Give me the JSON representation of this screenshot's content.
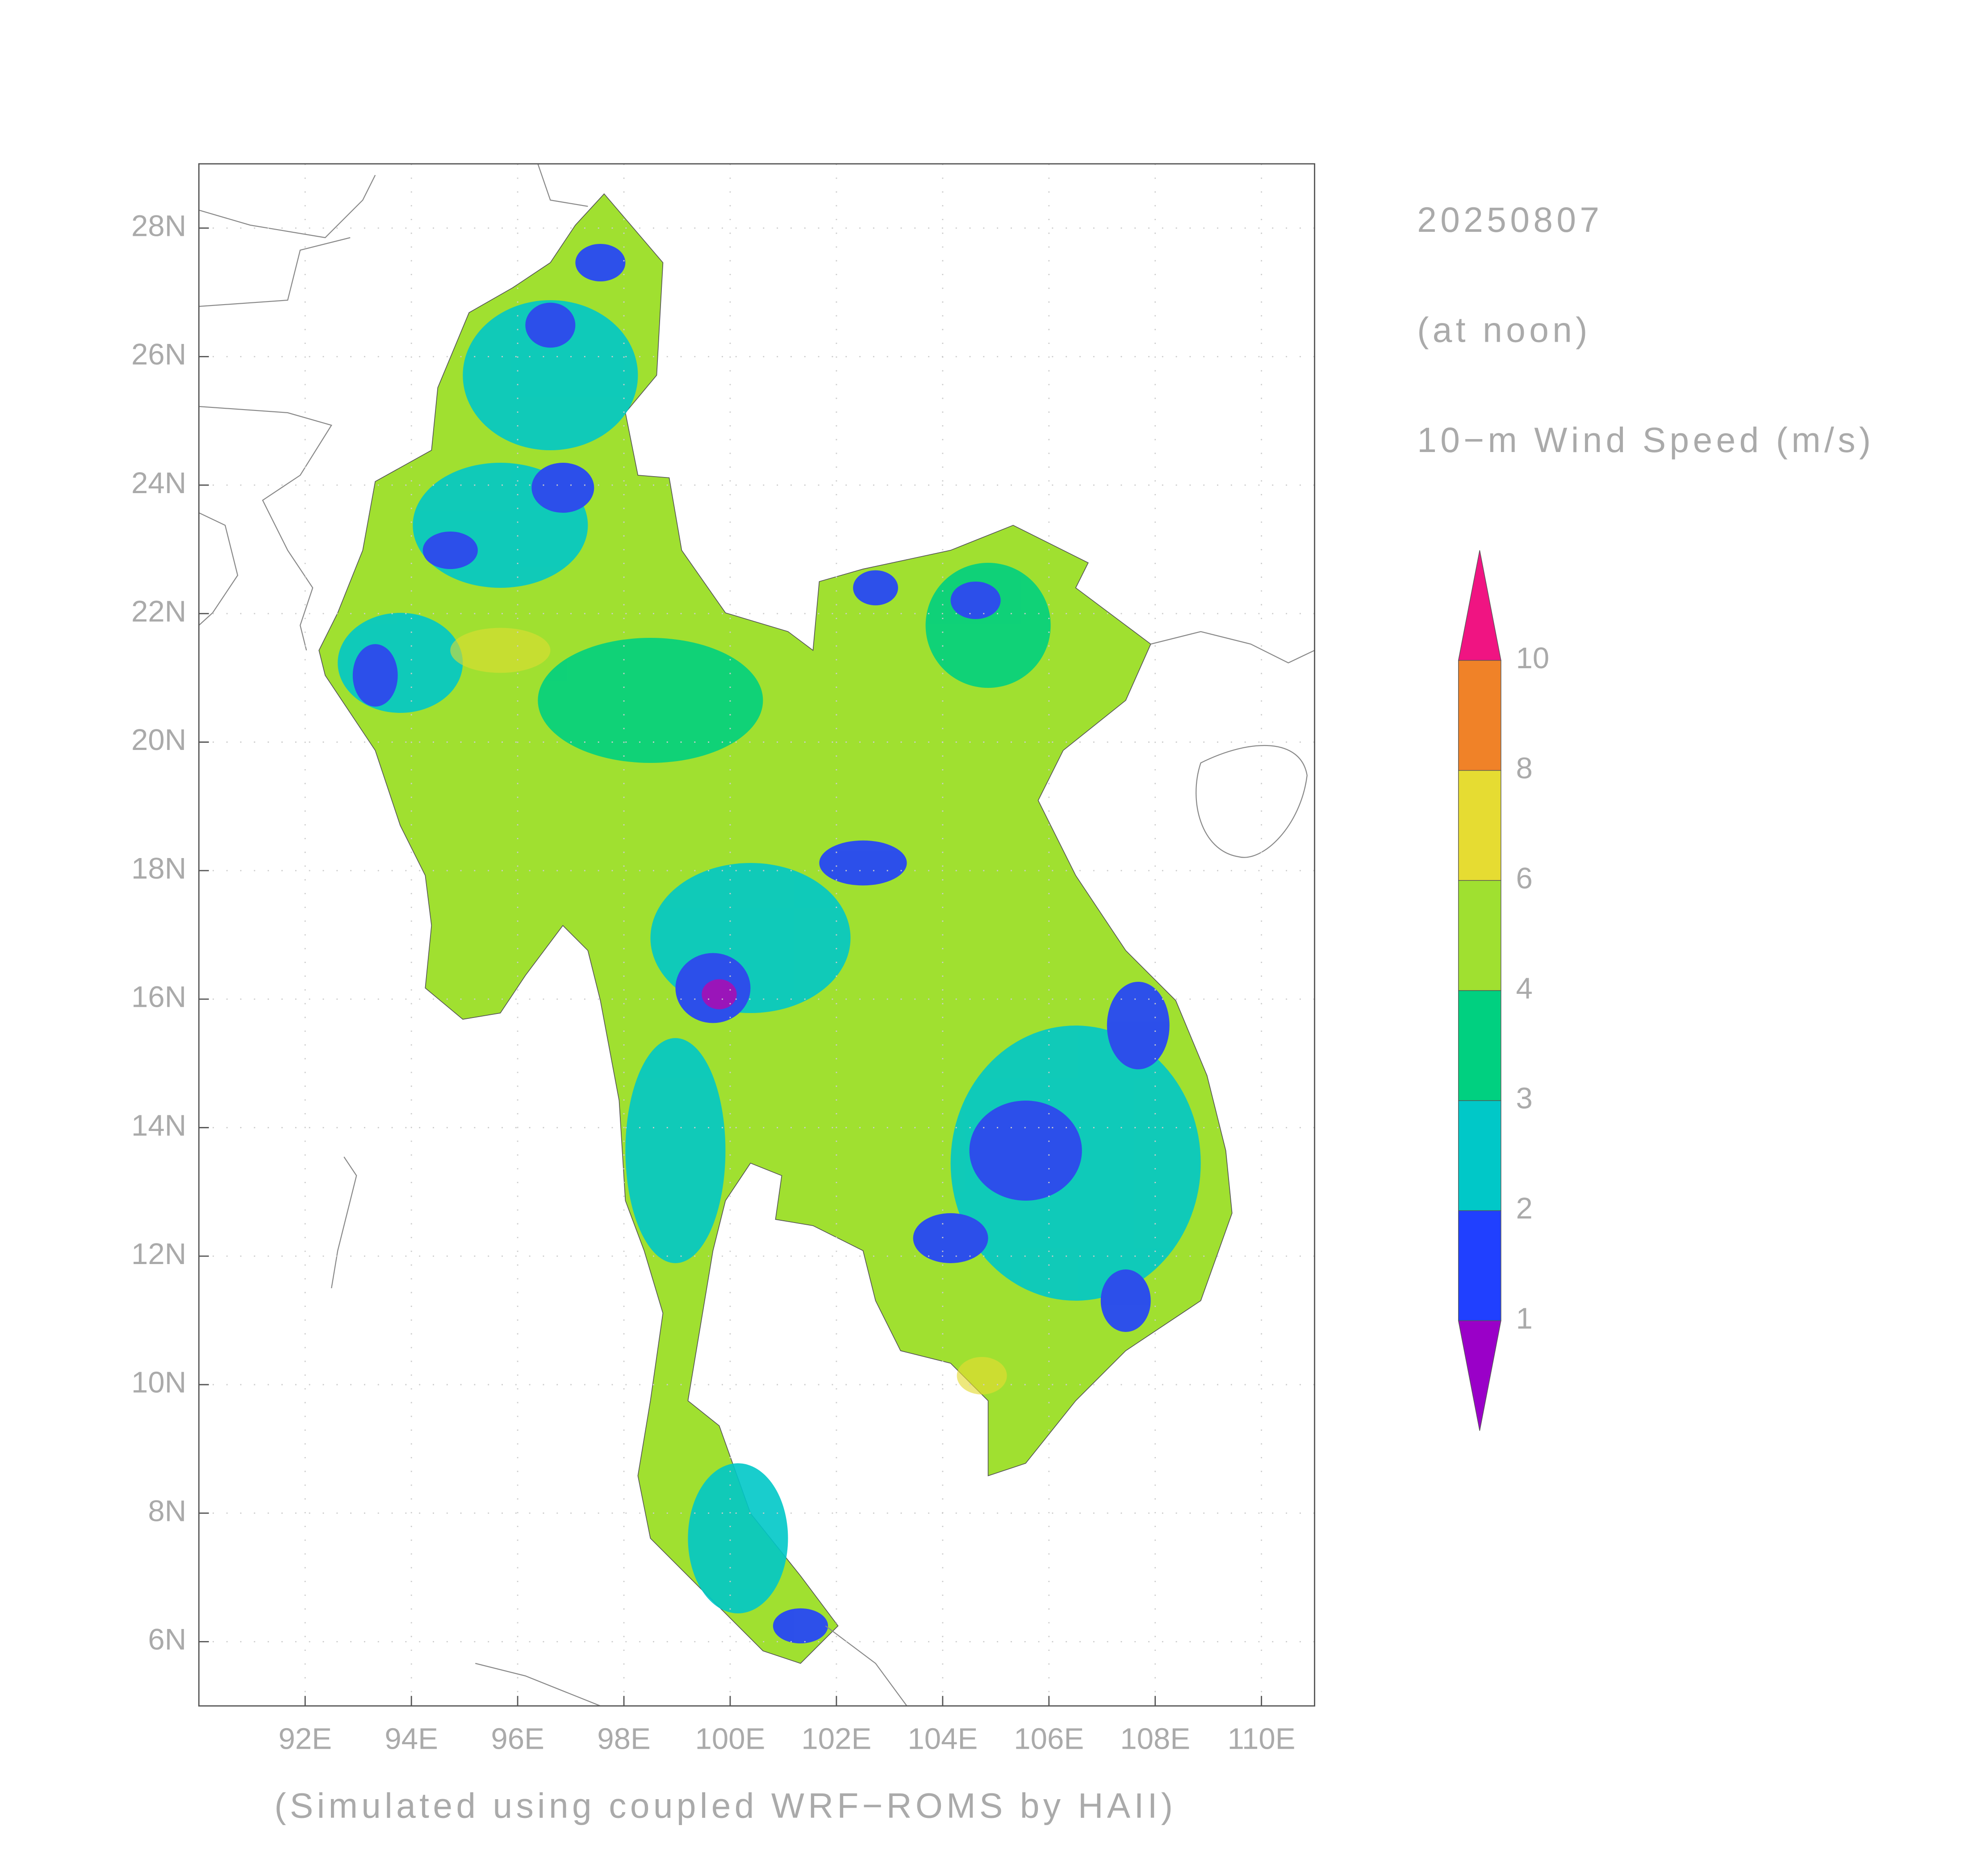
{
  "map": {
    "title": "20250807",
    "subtitle": "(at noon)",
    "variable": "10−m Wind Speed (m/s)",
    "footer": "(Simulated using coupled WRF−ROMS by HAII)",
    "xlim": [
      90,
      111
    ],
    "ylim": [
      5,
      29
    ],
    "xticks": [
      {
        "value": 92,
        "label": "92E"
      },
      {
        "value": 94,
        "label": "94E"
      },
      {
        "value": 96,
        "label": "96E"
      },
      {
        "value": 98,
        "label": "98E"
      },
      {
        "value": 100,
        "label": "100E"
      },
      {
        "value": 102,
        "label": "102E"
      },
      {
        "value": 104,
        "label": "104E"
      },
      {
        "value": 106,
        "label": "106E"
      },
      {
        "value": 108,
        "label": "108E"
      },
      {
        "value": 110,
        "label": "110E"
      }
    ],
    "yticks": [
      {
        "value": 6,
        "label": "6N"
      },
      {
        "value": 8,
        "label": "8N"
      },
      {
        "value": 10,
        "label": "10N"
      },
      {
        "value": 12,
        "label": "12N"
      },
      {
        "value": 14,
        "label": "14N"
      },
      {
        "value": 16,
        "label": "16N"
      },
      {
        "value": 18,
        "label": "18N"
      },
      {
        "value": 20,
        "label": "20N"
      },
      {
        "value": 22,
        "label": "22N"
      },
      {
        "value": 24,
        "label": "24N"
      },
      {
        "value": 26,
        "label": "26N"
      },
      {
        "value": 28,
        "label": "28N"
      }
    ],
    "grid": true,
    "colorbar": {
      "levels": [
        1,
        2,
        3,
        4,
        6,
        8,
        10
      ],
      "colors": [
        "#9a00c8",
        "#2040ff",
        "#00c8c8",
        "#00d080",
        "#a0e030",
        "#e6dc32",
        "#f08228",
        "#f01482"
      ]
    }
  }
}
